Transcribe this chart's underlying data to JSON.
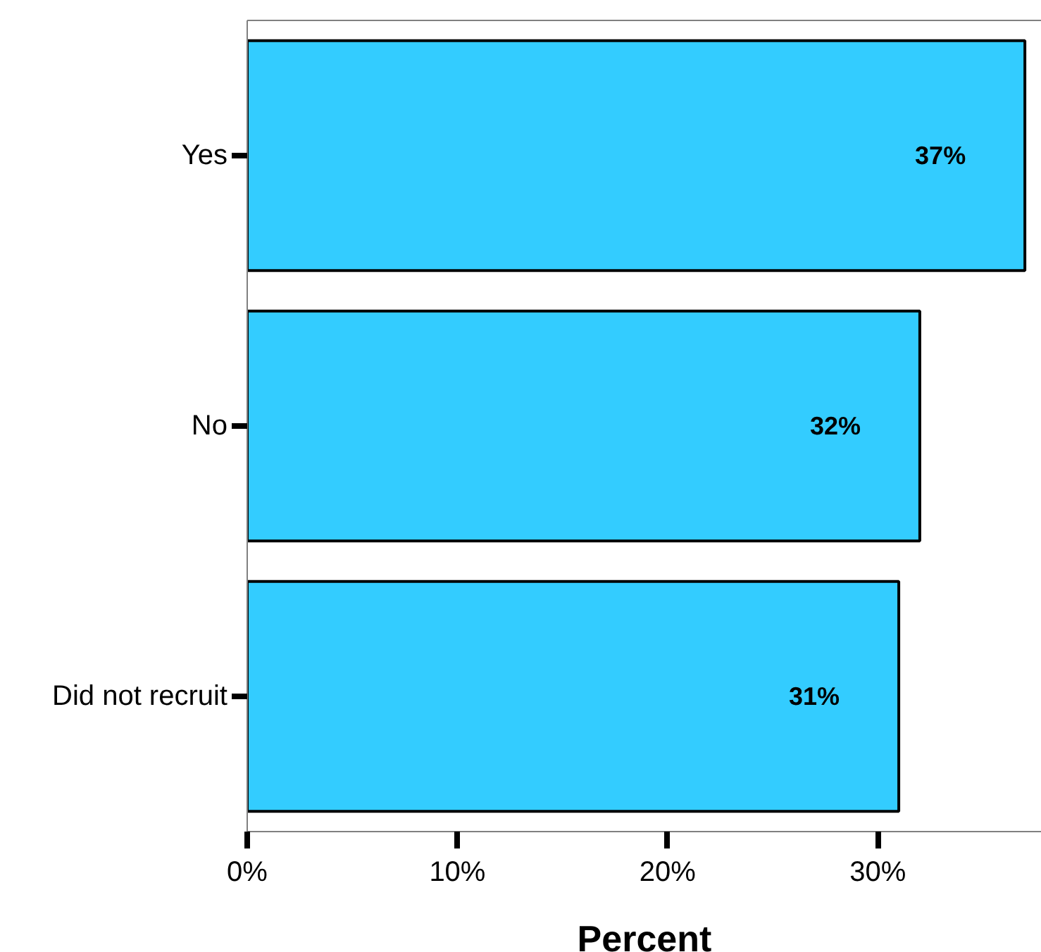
{
  "chart_data": {
    "type": "bar",
    "orientation": "horizontal",
    "categories": [
      "Yes",
      "No",
      "Did not recruit"
    ],
    "values": [
      37,
      32,
      31
    ],
    "color": "#33ccff",
    "value_labels": [
      "37%",
      "32%",
      "31%"
    ],
    "xlim": [
      0,
      37.8
    ],
    "xticks": [
      {
        "value": 0,
        "label": "0%"
      },
      {
        "value": 10,
        "label": "10%"
      },
      {
        "value": 20,
        "label": "20%"
      },
      {
        "value": 30,
        "label": "30%"
      }
    ],
    "xlabel": "Percent",
    "grid": false
  }
}
